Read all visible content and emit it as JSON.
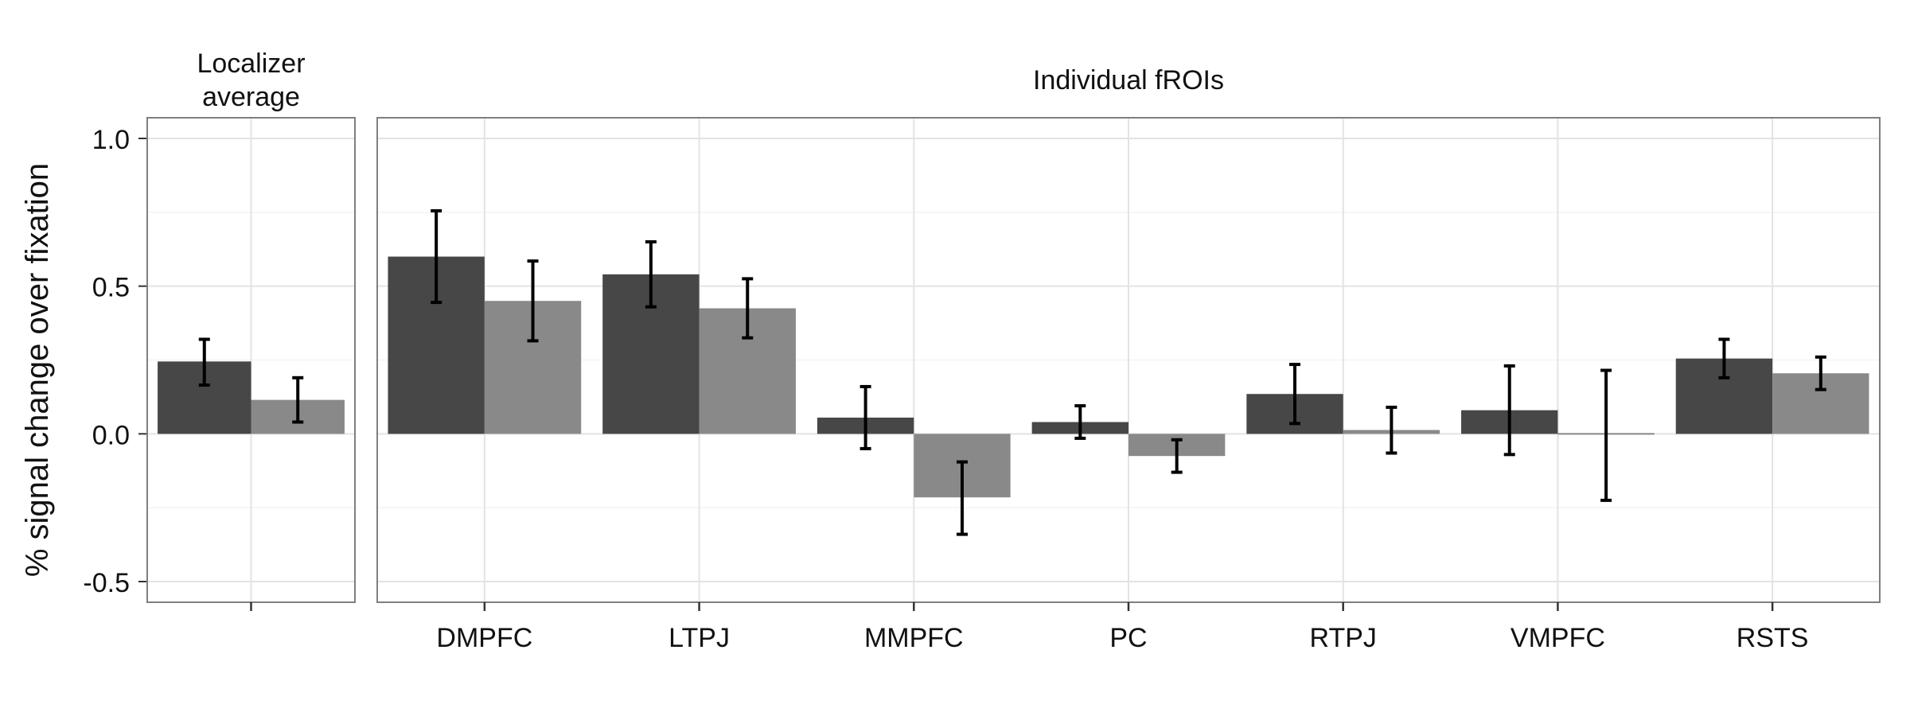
{
  "chart_data": {
    "type": "bar",
    "ylabel": "% signal change over fixation",
    "ylim": [
      -0.57,
      1.07
    ],
    "yticks": [
      1.0,
      0.5,
      0.0,
      -0.5
    ],
    "ytick_labels": [
      "1.0",
      "0.5",
      "0.0",
      "-0.5"
    ],
    "grid": true,
    "colors": {
      "series1": "#474747",
      "series2": "#898989",
      "error_bar": "#000000",
      "panel_border": "#7f7f7f",
      "grid_major": "#e3e3e3",
      "grid_minor": "#f3f3f3"
    },
    "panels": [
      {
        "strip_label": "Localizer\naverage",
        "categories": [
          ""
        ],
        "series": [
          {
            "values": [
              0.245
            ],
            "err_low": [
              0.165
            ],
            "err_high": [
              0.32
            ]
          },
          {
            "values": [
              0.115
            ],
            "err_low": [
              0.04
            ],
            "err_high": [
              0.19
            ]
          }
        ]
      },
      {
        "strip_label": "Individual fROIs",
        "categories": [
          "DMPFC",
          "LTPJ",
          "MMPFC",
          "PC",
          "RTPJ",
          "VMPFC",
          "RSTS"
        ],
        "series": [
          {
            "values": [
              0.6,
              0.54,
              0.055,
              0.04,
              0.135,
              0.08,
              0.255
            ],
            "err_low": [
              0.445,
              0.43,
              -0.05,
              -0.015,
              0.035,
              -0.07,
              0.19
            ],
            "err_high": [
              0.755,
              0.65,
              0.16,
              0.095,
              0.235,
              0.23,
              0.32
            ]
          },
          {
            "values": [
              0.45,
              0.425,
              -0.215,
              -0.075,
              0.013,
              -0.005,
              0.205
            ],
            "err_low": [
              0.315,
              0.325,
              -0.34,
              -0.13,
              -0.065,
              -0.225,
              0.15
            ],
            "err_high": [
              0.585,
              0.525,
              -0.095,
              -0.02,
              0.09,
              0.215,
              0.26
            ]
          }
        ]
      }
    ]
  }
}
